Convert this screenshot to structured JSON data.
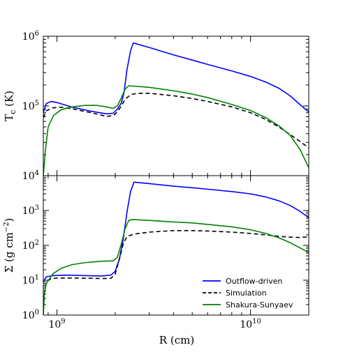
{
  "figure": {
    "xlabel": "R (cm)"
  },
  "chart_data": [
    {
      "type": "line",
      "panel": "top",
      "ylabel": "T",
      "ylabel_sub": "c",
      "ylabel_unit": " (K)",
      "xscale": "log",
      "yscale": "log",
      "xlim": [
        850000000,
        20000000000
      ],
      "ylim": [
        10000,
        1000000
      ],
      "yticks": [
        {
          "base": "10",
          "exp": "4",
          "value": 10000
        },
        {
          "base": "10",
          "exp": "5",
          "value": 100000
        },
        {
          "base": "10",
          "exp": "6",
          "value": 1000000
        }
      ],
      "series": [
        {
          "name": "Outflow-driven",
          "color": "#0000ff",
          "dash": "",
          "points": [
            [
              850000000,
              80000
            ],
            [
              880000000,
              108000
            ],
            [
              930000000,
              116000
            ],
            [
              1000000000,
              112000
            ],
            [
              1200000000,
              96000
            ],
            [
              1500000000,
              84000
            ],
            [
              1800000000,
              77000
            ],
            [
              1950000000,
              78500
            ],
            [
              2050000000,
              90000
            ],
            [
              2150000000,
              110000
            ],
            [
              2220000000,
              155000
            ],
            [
              2300000000,
              330000
            ],
            [
              2400000000,
              620000
            ],
            [
              2480000000,
              800000
            ],
            [
              3000000000,
              690000
            ],
            [
              4000000000,
              540000
            ],
            [
              5000000000,
              455000
            ],
            [
              6000000000,
              395000
            ],
            [
              8000000000,
              318000
            ],
            [
              10000000000,
              265000
            ],
            [
              12000000000,
              220000
            ],
            [
              14000000000,
              180000
            ],
            [
              16000000000,
              140000
            ],
            [
              18000000000,
              105000
            ],
            [
              20000000000,
              82000
            ]
          ]
        },
        {
          "name": "Simulation",
          "color": "#000000",
          "dash": "6,4",
          "points": [
            [
              850000000,
              68000
            ],
            [
              880000000,
              85000
            ],
            [
              950000000,
              94000
            ],
            [
              1050000000,
              96000
            ],
            [
              1200000000,
              91000
            ],
            [
              1500000000,
              80000
            ],
            [
              1800000000,
              71000
            ],
            [
              1950000000,
              72500
            ],
            [
              2050000000,
              82000
            ],
            [
              2150000000,
              100000
            ],
            [
              2250000000,
              125000
            ],
            [
              2400000000,
              145000
            ],
            [
              2600000000,
              152000
            ],
            [
              3000000000,
              152000
            ],
            [
              4000000000,
              140000
            ],
            [
              5000000000,
              128000
            ],
            [
              6000000000,
              116000
            ],
            [
              8000000000,
              97000
            ],
            [
              10000000000,
              80000
            ],
            [
              12000000000,
              64000
            ],
            [
              14000000000,
              50000
            ],
            [
              16000000000,
              39000
            ],
            [
              18000000000,
              31000
            ],
            [
              20000000000,
              25000
            ]
          ]
        },
        {
          "name": "Shakura-Sunyaev",
          "color": "#008000",
          "dash": "",
          "points": [
            [
              850000000,
              10000
            ],
            [
              870000000,
              22000
            ],
            [
              900000000,
              50000
            ],
            [
              960000000,
              73000
            ],
            [
              1050000000,
              88000
            ],
            [
              1200000000,
              97000
            ],
            [
              1400000000,
              102000
            ],
            [
              1600000000,
              102000
            ],
            [
              1800000000,
              97000
            ],
            [
              1950000000,
              92000
            ],
            [
              2050000000,
              100000
            ],
            [
              2150000000,
              130000
            ],
            [
              2250000000,
              175000
            ],
            [
              2350000000,
              195000
            ],
            [
              3000000000,
              185000
            ],
            [
              4000000000,
              165000
            ],
            [
              5000000000,
              148000
            ],
            [
              6000000000,
              132000
            ],
            [
              8000000000,
              105000
            ],
            [
              10000000000,
              86000
            ],
            [
              12000000000,
              68000
            ],
            [
              14000000000,
              52000
            ],
            [
              16000000000,
              38000
            ],
            [
              18000000000,
              24000
            ],
            [
              20000000000,
              13000
            ]
          ]
        }
      ]
    },
    {
      "type": "line",
      "panel": "bottom",
      "ylabel": "Σ (g cm",
      "ylabel_exp": "−2",
      "ylabel_end": ")",
      "xscale": "log",
      "yscale": "log",
      "xlim": [
        850000000,
        20000000000
      ],
      "ylim": [
        1,
        10000
      ],
      "yticks": [
        {
          "base": "10",
          "exp": "0",
          "value": 1
        },
        {
          "base": "10",
          "exp": "1",
          "value": 10
        },
        {
          "base": "10",
          "exp": "2",
          "value": 100
        },
        {
          "base": "10",
          "exp": "3",
          "value": 1000
        }
      ],
      "xticks": [
        {
          "base": "10",
          "exp": "9",
          "value": 1000000000
        },
        {
          "base": "10",
          "exp": "10",
          "value": 10000000000
        }
      ],
      "series": [
        {
          "name": "Outflow-driven",
          "color": "#0000ff",
          "dash": "",
          "points": [
            [
              850000000,
              9
            ],
            [
              880000000,
              12.5
            ],
            [
              950000000,
              13.5
            ],
            [
              1100000000,
              14
            ],
            [
              1400000000,
              13.5
            ],
            [
              1700000000,
              13.2
            ],
            [
              1900000000,
              14
            ],
            [
              2000000000,
              18
            ],
            [
              2100000000,
              40
            ],
            [
              2200000000,
              150
            ],
            [
              2300000000,
              900
            ],
            [
              2400000000,
              3500
            ],
            [
              2500000000,
              6500
            ],
            [
              3000000000,
              5900
            ],
            [
              4000000000,
              5000
            ],
            [
              5000000000,
              4500
            ],
            [
              6000000000,
              4100
            ],
            [
              8000000000,
              3500
            ],
            [
              10000000000,
              3000
            ],
            [
              12000000000,
              2450
            ],
            [
              14000000000,
              1900
            ],
            [
              16000000000,
              1400
            ],
            [
              18000000000,
              950
            ],
            [
              20000000000,
              620
            ]
          ]
        },
        {
          "name": "Simulation",
          "color": "#000000",
          "dash": "6,4",
          "points": [
            [
              850000000,
              1
            ],
            [
              860000000,
              4
            ],
            [
              880000000,
              9
            ],
            [
              930000000,
              11
            ],
            [
              1000000000,
              11.5
            ],
            [
              1300000000,
              11.5
            ],
            [
              1700000000,
              11.2
            ],
            [
              1900000000,
              11.3
            ],
            [
              2000000000,
              15
            ],
            [
              2100000000,
              40
            ],
            [
              2200000000,
              110
            ],
            [
              2300000000,
              180
            ],
            [
              2500000000,
              210
            ],
            [
              3000000000,
              240
            ],
            [
              4000000000,
              265
            ],
            [
              5000000000,
              265
            ],
            [
              6000000000,
              258
            ],
            [
              8000000000,
              240
            ],
            [
              10000000000,
              220
            ],
            [
              12000000000,
              200
            ],
            [
              14000000000,
              182
            ],
            [
              16000000000,
              172
            ],
            [
              18000000000,
              168
            ],
            [
              20000000000,
              175
            ]
          ]
        },
        {
          "name": "Shakura-Sunyaev",
          "color": "#008000",
          "dash": "",
          "points": [
            [
              850000000,
              1
            ],
            [
              860000000,
              4
            ],
            [
              880000000,
              8
            ],
            [
              950000000,
              15
            ],
            [
              1050000000,
              22
            ],
            [
              1200000000,
              28
            ],
            [
              1400000000,
              32
            ],
            [
              1700000000,
              35
            ],
            [
              1950000000,
              36
            ],
            [
              2050000000,
              45
            ],
            [
              2150000000,
              110
            ],
            [
              2250000000,
              300
            ],
            [
              2350000000,
              520
            ],
            [
              2450000000,
              550
            ],
            [
              3000000000,
              520
            ],
            [
              4000000000,
              470
            ],
            [
              5000000000,
              440
            ],
            [
              6000000000,
              400
            ],
            [
              8000000000,
              340
            ],
            [
              10000000000,
              280
            ],
            [
              12000000000,
              220
            ],
            [
              14000000000,
              165
            ],
            [
              16000000000,
              120
            ],
            [
              18000000000,
              85
            ],
            [
              20000000000,
              62
            ]
          ]
        }
      ],
      "legend": {
        "position": "lower-right",
        "entries": [
          "Outflow-driven",
          "Simulation",
          "Shakura-Sunyaev"
        ]
      }
    }
  ]
}
